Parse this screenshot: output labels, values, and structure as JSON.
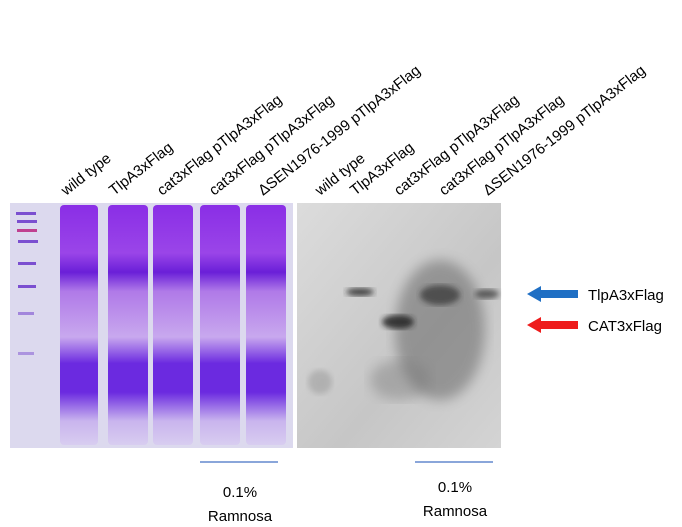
{
  "gel_1": {
    "lanes": [
      "wild type",
      "TlpA3xFlag",
      "cat3xFlag pTlpA3xFlag",
      "cat3xFlag pTlpA3xFlag",
      "ΔSEN1976-1999  pTlpA3xFlag"
    ]
  },
  "gel_2": {
    "lanes": [
      "wild type",
      "TlpA3xFlag",
      "cat3xFlag pTlpA3xFlag",
      "cat3xFlag pTlpA3xFlag",
      "ΔSEN1976-1999  pTlpA3xFlag"
    ]
  },
  "markers": [
    "TlpA3xFlag",
    "CAT3xFlag"
  ],
  "notes": [
    {
      "line1": "0.1%",
      "line2": "Ramnosa"
    },
    {
      "line1": "0.1%",
      "line2": "Ramnosa"
    }
  ]
}
